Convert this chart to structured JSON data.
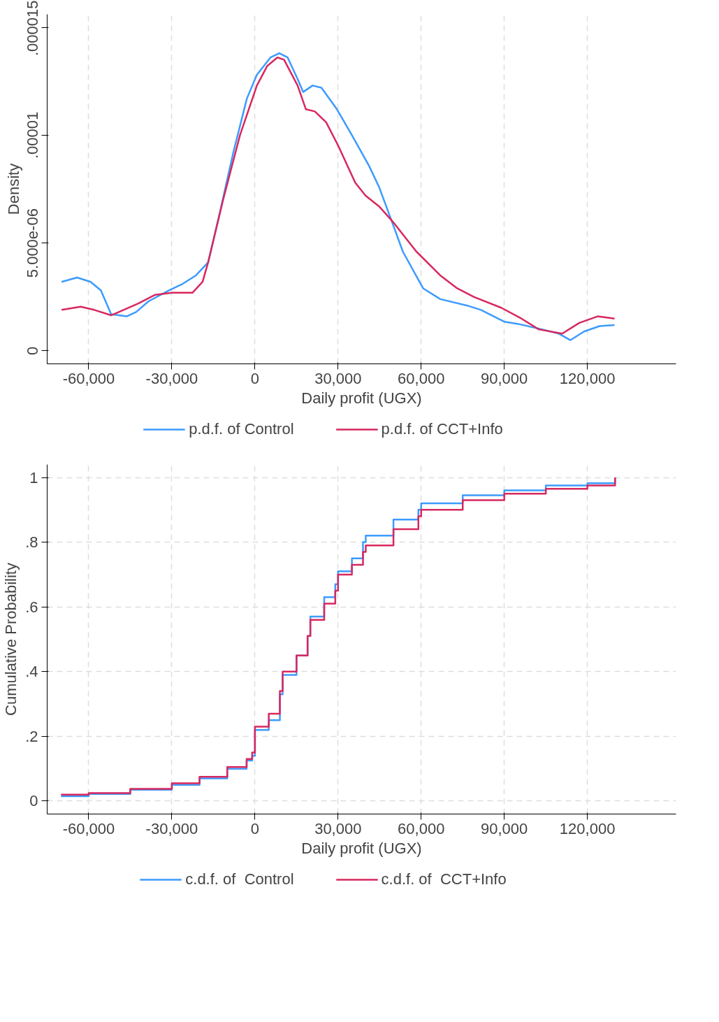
{
  "chart_data": [
    {
      "type": "line",
      "xlabel": "Daily profit (UGX)",
      "ylabel": "Density",
      "xlim": [
        -75000,
        152000
      ],
      "ylim": [
        -6e-07,
        1.56e-05
      ],
      "xticks": [
        {
          "value": -60000,
          "label": "-60,000"
        },
        {
          "value": -30000,
          "label": "-30,000"
        },
        0,
        {
          "value": 30000,
          "label": "30,000"
        },
        {
          "value": 60000,
          "label": "60,000"
        },
        {
          "value": 90000,
          "label": "90,000"
        },
        {
          "value": 120000,
          "label": "120,000"
        }
      ],
      "yticks": [
        0,
        {
          "value": 5e-06,
          "label": "5.000e-06"
        },
        {
          "value": 1e-05,
          "label": ".00001"
        },
        {
          "value": 1.5e-05,
          "label": ".000015"
        }
      ],
      "grid": "x",
      "legend": "bottom",
      "line_style": "solid",
      "marker": "none",
      "series": [
        {
          "name": "p.d.f. of Control",
          "color": "#3d9bff",
          "x": [
            -69800,
            -64200,
            -59300,
            -55600,
            -51900,
            -46300,
            -42900,
            -38400,
            -31100,
            -26200,
            -21300,
            -16900,
            -12700,
            -7800,
            -2900,
            700,
            5600,
            8800,
            11800,
            15400,
            17400,
            20800,
            24000,
            29600,
            35000,
            41100,
            44800,
            49700,
            53400,
            60700,
            66900,
            76700,
            81600,
            90100,
            95000,
            103600,
            109700,
            113900,
            118800,
            124400,
            129800
          ],
          "values": [
            3.2e-06,
            3.4e-06,
            3.2e-06,
            2.8e-06,
            1.7e-06,
            1.6e-06,
            1.8e-06,
            2.3e-06,
            2.8e-06,
            3.1e-06,
            3.5e-06,
            4.1e-06,
            6.4e-06,
            9.2e-06,
            1.17e-05,
            1.28e-05,
            1.36e-05,
            1.38e-05,
            1.36e-05,
            1.26e-05,
            1.2e-05,
            1.23e-05,
            1.22e-05,
            1.12e-05,
            1e-05,
            8.6e-06,
            7.6e-06,
            5.9e-06,
            4.6e-06,
            2.9e-06,
            2.4e-06,
            2.1e-06,
            1.9e-06,
            1.35e-06,
            1.25e-06,
            1e-06,
            8e-07,
            5e-07,
            9e-07,
            1.15e-06,
            1.2e-06
          ]
        },
        {
          "name": "p.d.f. of CCT+Info",
          "color": "#d8285e",
          "x": [
            -69800,
            -62900,
            -58000,
            -51900,
            -42100,
            -36000,
            -29900,
            -22500,
            -18900,
            -16900,
            -11500,
            -5400,
            700,
            4400,
            8100,
            10500,
            15400,
            18400,
            21600,
            25700,
            30100,
            36200,
            39900,
            44800,
            49700,
            58300,
            66900,
            73000,
            79100,
            88900,
            96200,
            102400,
            110900,
            117100,
            123700,
            129800
          ],
          "values": [
            1.9e-06,
            2.05e-06,
            1.9e-06,
            1.65e-06,
            2.2e-06,
            2.6e-06,
            2.7e-06,
            2.7e-06,
            3.2e-06,
            4.1e-06,
            7e-06,
            1e-05,
            1.23e-05,
            1.32e-05,
            1.36e-05,
            1.35e-05,
            1.23e-05,
            1.12e-05,
            1.11e-05,
            1.06e-05,
            9.5e-06,
            7.8e-06,
            7.2e-06,
            6.7e-06,
            6e-06,
            4.6e-06,
            3.5e-06,
            2.9e-06,
            2.5e-06,
            2e-06,
            1.5e-06,
            1e-06,
            8e-07,
            1.3e-06,
            1.6e-06,
            1.5e-06
          ]
        }
      ]
    },
    {
      "type": "step",
      "xlabel": "Daily profit (UGX)",
      "ylabel": "Cumulative Probability",
      "xlim": [
        -75000,
        152000
      ],
      "ylim": [
        -0.04,
        1.04
      ],
      "xticks": [
        {
          "value": -60000,
          "label": "-60,000"
        },
        {
          "value": -30000,
          "label": "-30,000"
        },
        0,
        {
          "value": 30000,
          "label": "30,000"
        },
        {
          "value": 60000,
          "label": "60,000"
        },
        {
          "value": 90000,
          "label": "90,000"
        },
        {
          "value": 120000,
          "label": "120,000"
        }
      ],
      "yticks": [
        0,
        {
          "value": 0.2,
          "label": ".2"
        },
        {
          "value": 0.4,
          "label": ".4"
        },
        {
          "value": 0.6,
          "label": ".6"
        },
        {
          "value": 0.8,
          "label": ".8"
        },
        1
      ],
      "grid": true,
      "legend": "bottom",
      "line_style": "solid",
      "marker": "none",
      "series": [
        {
          "name": "c.d.f. of  Control",
          "color": "#3d9bff",
          "x": [
            -70000,
            -60000,
            -45000,
            -30000,
            -20000,
            -10000,
            -3000,
            -1000,
            0,
            5000,
            9000,
            10000,
            15000,
            19000,
            20000,
            25000,
            29000,
            30000,
            35000,
            39000,
            40000,
            50000,
            59000,
            60000,
            75000,
            90000,
            105000,
            120000,
            130000
          ],
          "values": [
            0.015,
            0.022,
            0.035,
            0.05,
            0.07,
            0.1,
            0.125,
            0.14,
            0.22,
            0.25,
            0.33,
            0.39,
            0.45,
            0.51,
            0.57,
            0.63,
            0.67,
            0.71,
            0.75,
            0.8,
            0.82,
            0.87,
            0.9,
            0.92,
            0.945,
            0.96,
            0.975,
            0.982,
            1.0
          ]
        },
        {
          "name": "c.d.f. of  CCT+Info",
          "color": "#d8285e",
          "x": [
            -70000,
            -60000,
            -45000,
            -30000,
            -20000,
            -10000,
            -3000,
            -1000,
            0,
            5000,
            9000,
            10000,
            15000,
            19000,
            20000,
            25000,
            29000,
            30000,
            35000,
            39000,
            40000,
            50000,
            59000,
            60000,
            75000,
            90000,
            105000,
            120000,
            130000
          ],
          "values": [
            0.02,
            0.025,
            0.038,
            0.055,
            0.075,
            0.105,
            0.13,
            0.15,
            0.23,
            0.27,
            0.34,
            0.4,
            0.45,
            0.51,
            0.56,
            0.61,
            0.65,
            0.7,
            0.73,
            0.77,
            0.79,
            0.84,
            0.88,
            0.9,
            0.93,
            0.95,
            0.965,
            0.975,
            1.0
          ]
        }
      ]
    }
  ]
}
